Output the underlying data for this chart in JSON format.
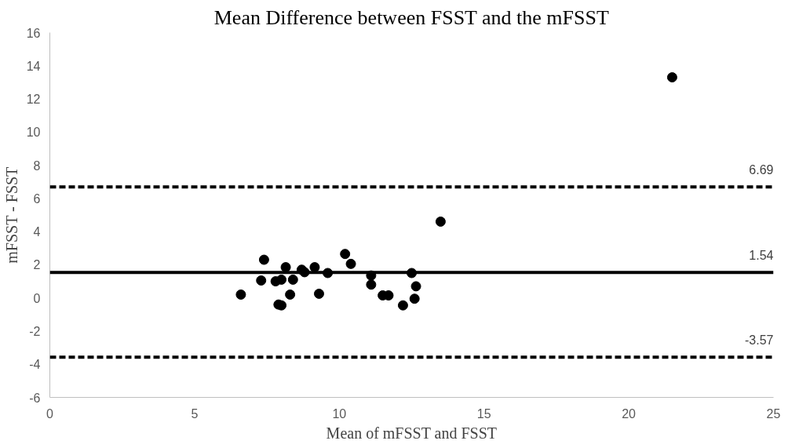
{
  "chart_data": {
    "type": "scatter",
    "title": "Mean Difference between FSST and the mFSST",
    "xlabel": "Mean of mFSST and FSST",
    "ylabel": "mFSST - FSST",
    "x": [
      6.6,
      7.3,
      7.4,
      7.8,
      7.9,
      8.0,
      8.0,
      8.15,
      8.3,
      8.4,
      8.7,
      8.8,
      9.15,
      9.3,
      9.6,
      10.2,
      10.4,
      11.1,
      11.1,
      11.5,
      11.7,
      12.2,
      12.5,
      12.6,
      12.65,
      13.5,
      21.5
    ],
    "values": [
      0.2,
      1.05,
      2.3,
      1.0,
      -0.4,
      -0.45,
      1.1,
      1.85,
      0.2,
      1.1,
      1.7,
      1.55,
      1.85,
      0.25,
      1.5,
      2.65,
      2.05,
      1.35,
      0.8,
      0.15,
      0.15,
      -0.45,
      1.5,
      -0.05,
      0.7,
      4.6,
      13.3
    ],
    "color": "#000000",
    "marker": "circle",
    "xlim": [
      0,
      25
    ],
    "xticks": [
      0,
      5,
      10,
      15,
      20,
      25
    ],
    "ylim": [
      -6,
      16
    ],
    "yticks": [
      -6,
      -4,
      -2,
      0,
      2,
      4,
      6,
      8,
      10,
      12,
      14,
      16
    ],
    "grid": false,
    "ref_lines": [
      {
        "axis": "y",
        "value": 6.69,
        "label": "6.69",
        "line_style": "dashed",
        "color": "#000000"
      },
      {
        "axis": "y",
        "value": 1.54,
        "label": "1.54",
        "line_style": "solid",
        "color": "#000000"
      },
      {
        "axis": "y",
        "value": -3.57,
        "label": "-3.57",
        "line_style": "dashed",
        "color": "#000000"
      }
    ]
  }
}
